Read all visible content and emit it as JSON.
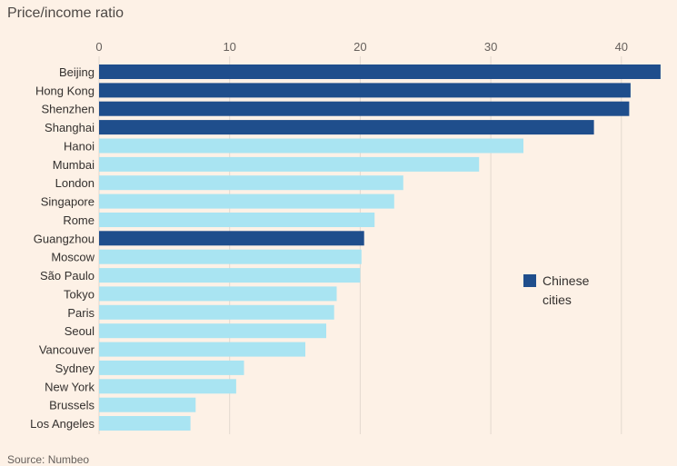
{
  "chart_data": {
    "type": "bar",
    "orientation": "horizontal",
    "title": "Price/income ratio",
    "source": "Source: Numbeo",
    "xlim": [
      0,
      43
    ],
    "xticks": [
      0,
      10,
      20,
      30,
      40
    ],
    "categories": [
      "Beijing",
      "Hong Kong",
      "Shenzhen",
      "Shanghai",
      "Hanoi",
      "Mumbai",
      "London",
      "Singapore",
      "Rome",
      "Guangzhou",
      "Moscow",
      "São Paulo",
      "Tokyo",
      "Paris",
      "Seoul",
      "Vancouver",
      "Sydney",
      "New York",
      "Brussels",
      "Los Angeles"
    ],
    "values": [
      43.0,
      40.7,
      40.6,
      37.9,
      32.5,
      29.1,
      23.3,
      22.6,
      21.1,
      20.3,
      20.1,
      20.0,
      18.2,
      18.0,
      17.4,
      15.8,
      11.1,
      10.5,
      7.4,
      7.0
    ],
    "chinese": [
      true,
      true,
      true,
      true,
      false,
      false,
      false,
      false,
      false,
      true,
      false,
      false,
      false,
      false,
      false,
      false,
      false,
      false,
      false,
      false
    ],
    "legend": {
      "label_line1": "Chinese",
      "label_line2": "cities",
      "position": "right"
    },
    "colors": {
      "chinese": "#1f4e8c",
      "other": "#a9e4f2",
      "grid": "#e3d9cf",
      "background": "#fdf1e6"
    }
  }
}
